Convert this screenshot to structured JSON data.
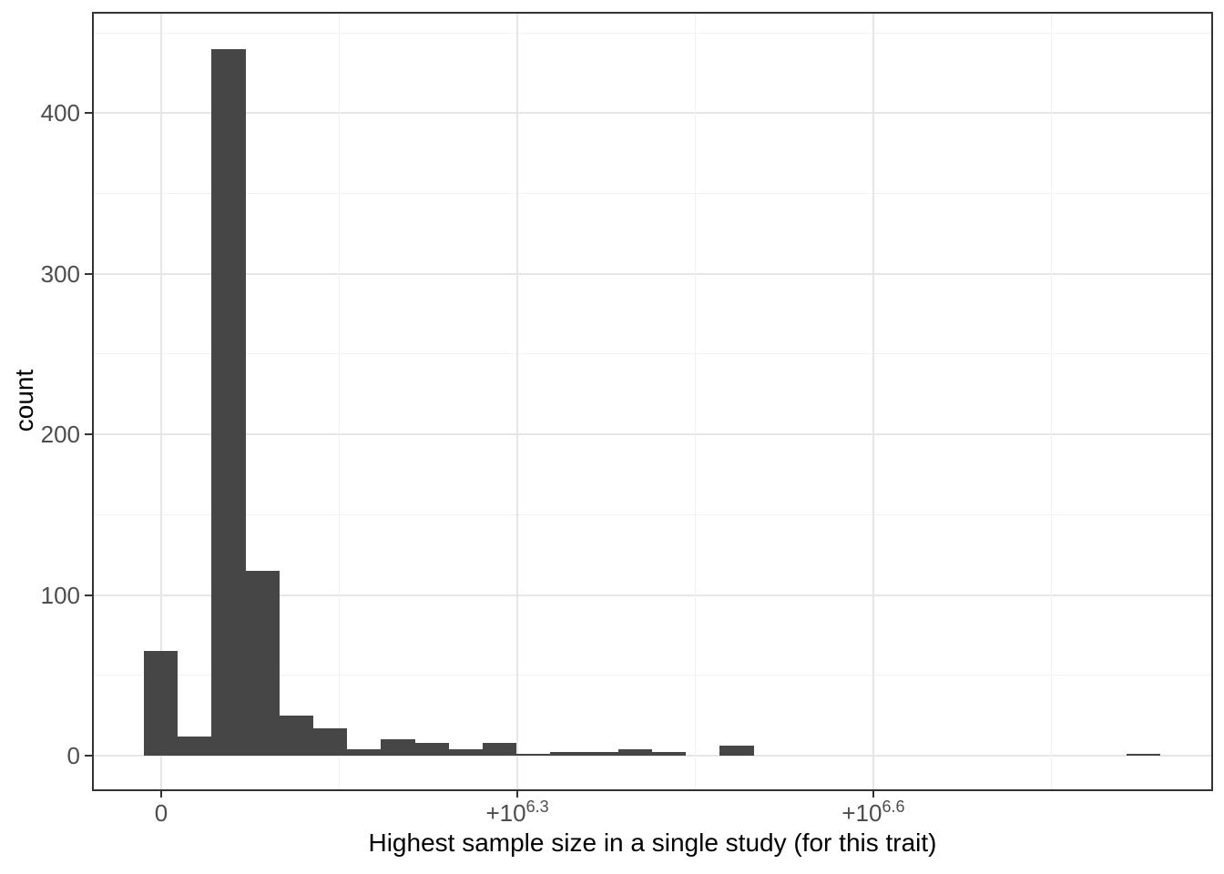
{
  "figure": {
    "x_title": "Highest sample size in a single study (for this trait)",
    "y_title": "count"
  },
  "chart_data": {
    "type": "bar",
    "subtype": "histogram",
    "title": "",
    "xlabel": "Highest sample size in a single study (for this trait)",
    "ylabel": "count",
    "x_scale": "pseudo-log; labeled breaks at 0, +10^6.3, +10^6.6",
    "ylim": [
      -21,
      462
    ],
    "grid": "on",
    "y_axis": {
      "major_breaks": [
        0,
        100,
        200,
        300,
        400
      ],
      "major_labels": [
        "0",
        "100",
        "200",
        "300",
        "400"
      ],
      "minor_breaks": [
        50,
        150,
        250,
        350,
        450
      ]
    },
    "x_axis": {
      "ticks": [
        {
          "base": "0",
          "sup": "",
          "frac": 0.0603
        },
        {
          "base": "+10",
          "sup": "6.3",
          "frac": 0.379
        },
        {
          "base": "+10",
          "sup": "6.6",
          "frac": 0.6976
        }
      ],
      "minor_fracs": [
        0.2196,
        0.5383,
        0.857
      ]
    },
    "bins": {
      "n_bins": 30,
      "first_left_frac": 0.0448,
      "width_frac": 0.03032,
      "counts": [
        65,
        12,
        440,
        115,
        25,
        17,
        4,
        10,
        8,
        4,
        8,
        1,
        2,
        2,
        4,
        2,
        0,
        6,
        0,
        0,
        0,
        0,
        0,
        0,
        0,
        0,
        0,
        0,
        0,
        1
      ]
    },
    "colors": {
      "bar": "#464646",
      "panel_border": "#333333",
      "grid_major": "#E6E6E6",
      "grid_minor": "#F2F2F2",
      "tick_mark": "#333333",
      "tick_text": "#4D4D4D",
      "axis_title": "#000000",
      "background": "#FFFFFF"
    }
  }
}
